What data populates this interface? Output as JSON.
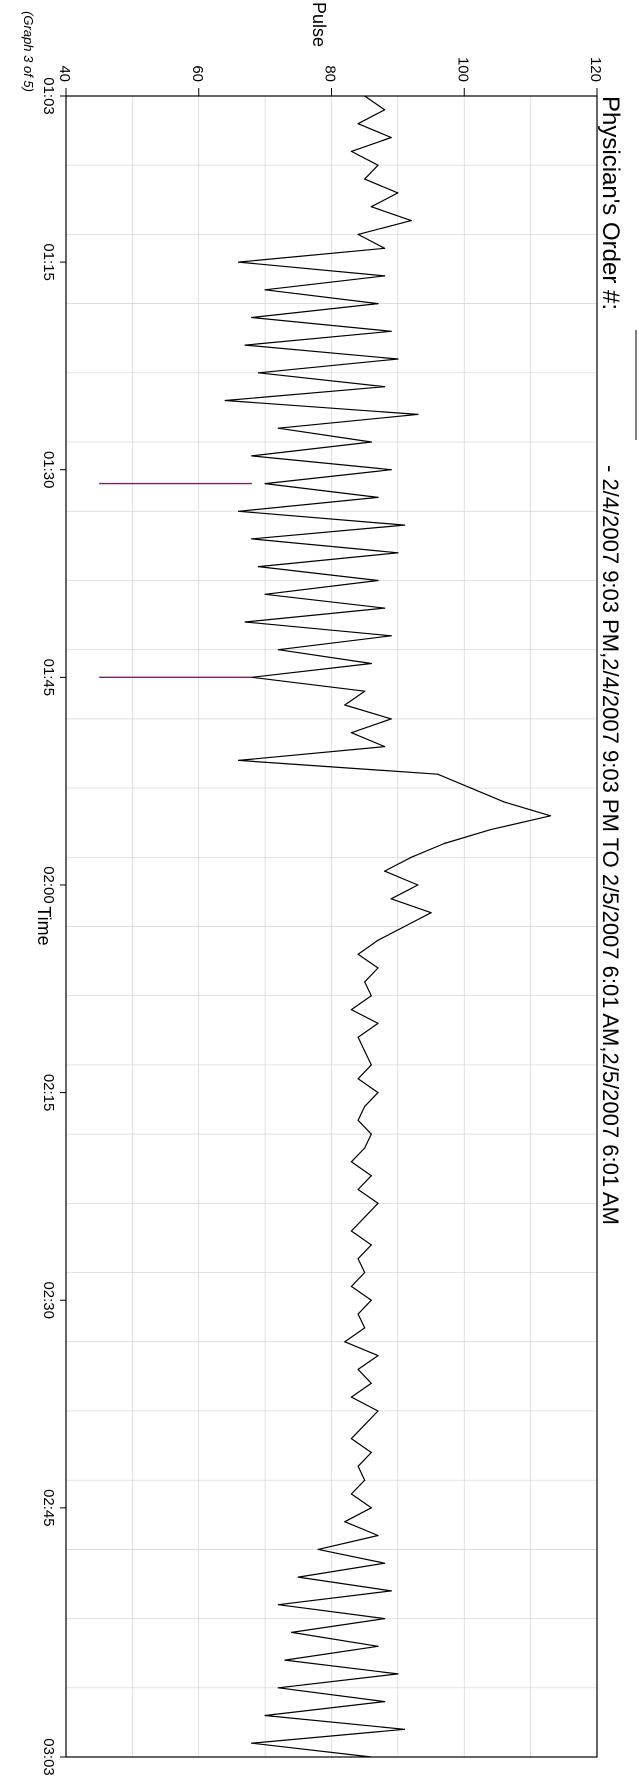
{
  "header": {
    "order_label": "Physician's Order #:",
    "date_range": "- 2/4/2007 9:03 PM,2/4/2007 9:03 PM  TO  2/5/2007 6:01 AM,2/5/2007 6:01 AM"
  },
  "footer": {
    "graph_counter": "(Graph 3 of 5)"
  },
  "colors": {
    "series": "#000000",
    "artifact": "#7a1f6a",
    "grid": "#d4d4d4"
  },
  "chart_data": {
    "type": "line",
    "title": "",
    "xlabel": "Time",
    "ylabel": "Pulse",
    "x_unit": "HH:MM",
    "xlim": [
      "01:03",
      "03:03"
    ],
    "ylim": [
      40,
      120
    ],
    "x_ticks": [
      "01:03",
      "01:15",
      "01:30",
      "01:45",
      "02:00",
      "02:15",
      "02:30",
      "02:45",
      "03:03"
    ],
    "y_ticks": [
      40,
      60,
      80,
      100,
      120
    ],
    "grid": true,
    "series": [
      {
        "points": [
          [
            "01:03",
            85
          ],
          [
            "01:04",
            88
          ],
          [
            "01:05",
            84
          ],
          [
            "01:06",
            89
          ],
          [
            "01:07",
            83
          ],
          [
            "01:08",
            87
          ],
          [
            "01:09",
            85
          ],
          [
            "01:10",
            90
          ],
          [
            "01:11",
            86
          ],
          [
            "01:12",
            92
          ],
          [
            "01:13",
            84
          ],
          [
            "01:14",
            88
          ],
          [
            "01:15",
            66
          ],
          [
            "01:16",
            88
          ],
          [
            "01:17",
            70
          ],
          [
            "01:18",
            87
          ],
          [
            "01:19",
            68
          ],
          [
            "01:20",
            89
          ],
          [
            "01:21",
            67
          ],
          [
            "01:22",
            90
          ],
          [
            "01:23",
            69
          ],
          [
            "01:24",
            88
          ],
          [
            "01:25",
            64
          ],
          [
            "01:26",
            93
          ],
          [
            "01:27",
            72
          ],
          [
            "01:28",
            86
          ],
          [
            "01:29",
            68
          ],
          [
            "01:30",
            89
          ],
          [
            "01:31",
            70
          ],
          [
            "01:32",
            87
          ],
          [
            "01:33",
            66
          ],
          [
            "01:34",
            91
          ],
          [
            "01:35",
            68
          ],
          [
            "01:36",
            90
          ],
          [
            "01:37",
            69
          ],
          [
            "01:38",
            87
          ],
          [
            "01:39",
            70
          ],
          [
            "01:40",
            88
          ],
          [
            "01:41",
            67
          ],
          [
            "01:42",
            89
          ],
          [
            "01:43",
            72
          ],
          [
            "01:44",
            86
          ],
          [
            "01:45",
            68
          ],
          [
            "01:46",
            85
          ],
          [
            "01:47",
            82
          ],
          [
            "01:48",
            89
          ],
          [
            "01:49",
            83
          ],
          [
            "01:50",
            88
          ],
          [
            "01:51",
            66
          ],
          [
            "01:52",
            96
          ],
          [
            "01:53",
            101
          ],
          [
            "01:54",
            106
          ],
          [
            "01:55",
            113
          ],
          [
            "01:56",
            104
          ],
          [
            "01:57",
            97
          ],
          [
            "01:58",
            92
          ],
          [
            "01:59",
            88
          ],
          [
            "02:00",
            93
          ],
          [
            "02:01",
            89
          ],
          [
            "02:02",
            95
          ],
          [
            "02:03",
            91
          ],
          [
            "02:04",
            87
          ],
          [
            "02:05",
            84
          ],
          [
            "02:06",
            87
          ],
          [
            "02:07",
            85
          ],
          [
            "02:08",
            86
          ],
          [
            "02:09",
            83
          ],
          [
            "02:10",
            87
          ],
          [
            "02:11",
            84
          ],
          [
            "02:12",
            85
          ],
          [
            "02:13",
            86
          ],
          [
            "02:14",
            84
          ],
          [
            "02:15",
            87
          ],
          [
            "02:16",
            85
          ],
          [
            "02:17",
            84
          ],
          [
            "02:18",
            86
          ],
          [
            "02:19",
            85
          ],
          [
            "02:20",
            83
          ],
          [
            "02:21",
            86
          ],
          [
            "02:22",
            84
          ],
          [
            "02:23",
            87
          ],
          [
            "02:24",
            85
          ],
          [
            "02:25",
            83
          ],
          [
            "02:26",
            86
          ],
          [
            "02:27",
            84
          ],
          [
            "02:28",
            85
          ],
          [
            "02:29",
            83
          ],
          [
            "02:30",
            86
          ],
          [
            "02:31",
            84
          ],
          [
            "02:32",
            85
          ],
          [
            "02:33",
            82
          ],
          [
            "02:34",
            87
          ],
          [
            "02:35",
            84
          ],
          [
            "02:36",
            86
          ],
          [
            "02:37",
            83
          ],
          [
            "02:38",
            87
          ],
          [
            "02:39",
            85
          ],
          [
            "02:40",
            83
          ],
          [
            "02:41",
            86
          ],
          [
            "02:42",
            84
          ],
          [
            "02:43",
            85
          ],
          [
            "02:44",
            83
          ],
          [
            "02:45",
            86
          ],
          [
            "02:46",
            82
          ],
          [
            "02:47",
            87
          ],
          [
            "02:48",
            78
          ],
          [
            "02:49",
            88
          ],
          [
            "02:50",
            75
          ],
          [
            "02:51",
            89
          ],
          [
            "02:52",
            72
          ],
          [
            "02:53",
            88
          ],
          [
            "02:54",
            74
          ],
          [
            "02:55",
            87
          ],
          [
            "02:56",
            73
          ],
          [
            "02:57",
            90
          ],
          [
            "02:58",
            72
          ],
          [
            "02:59",
            88
          ],
          [
            "03:00",
            70
          ],
          [
            "03:01",
            91
          ],
          [
            "03:02",
            68
          ],
          [
            "03:03",
            86
          ]
        ]
      }
    ],
    "artifacts": [
      {
        "x": "01:31",
        "y_from": 68,
        "y_to": 45
      },
      {
        "x": "01:45",
        "y_from": 68,
        "y_to": 45
      }
    ]
  }
}
